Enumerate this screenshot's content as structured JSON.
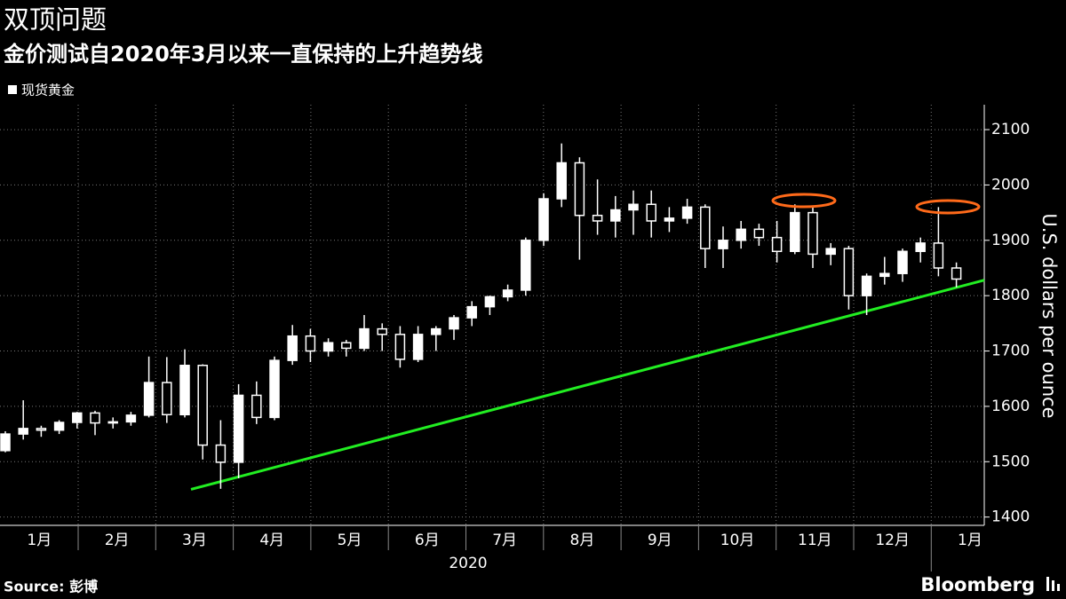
{
  "chart_data": {
    "type": "candlestick",
    "title": "双顶问题",
    "subtitle": "金价测试自2020年3月以来一直保持的上升趋势线",
    "y_axis_label": "U.S. dollars per ounce",
    "source": "Source: 彭博",
    "brand": "Bloomberg",
    "x_labels": [
      "1月",
      "2月",
      "3月",
      "4月",
      "5月",
      "6月",
      "7月",
      "8月",
      "9月",
      "10月",
      "11月",
      "12月",
      "1月"
    ],
    "x_year_label": "2020",
    "categories": [
      null,
      null,
      null,
      null,
      null,
      null,
      null,
      null,
      null,
      null,
      null,
      null,
      null,
      null,
      null,
      null,
      null,
      null,
      null,
      null,
      null,
      null,
      null,
      null,
      null,
      null,
      null,
      null,
      null,
      null,
      null,
      null,
      null,
      null,
      null,
      null,
      null,
      null,
      null,
      null,
      null,
      null,
      null,
      null,
      null,
      null,
      null,
      null,
      null,
      null,
      null,
      null,
      null,
      null
    ],
    "series": [
      {
        "name": "现货黄金",
        "color": "#ffffff",
        "open": [
          1520,
          1550,
          1560,
          1557,
          1571,
          1588,
          1570,
          1572,
          1584,
          1643,
          1585,
          1674,
          1530,
          1499,
          1620,
          1580,
          1683,
          1727,
          1700,
          1715,
          1705,
          1740,
          1730,
          1685,
          1730,
          1740,
          1760,
          1780,
          1798,
          1810,
          1900,
          1975,
          2040,
          1945,
          1935,
          1955,
          1965,
          1935,
          1940,
          1960,
          1885,
          1900,
          1920,
          1905,
          1880,
          1950,
          1875,
          1885,
          1800,
          1835,
          1840,
          1880,
          1895,
          1850
        ],
        "high": [
          1555,
          1611,
          1565,
          1575,
          1590,
          1592,
          1580,
          1590,
          1690,
          1689,
          1703,
          1676,
          1575,
          1640,
          1645,
          1690,
          1747,
          1740,
          1723,
          1720,
          1765,
          1750,
          1745,
          1745,
          1745,
          1765,
          1790,
          1800,
          1820,
          1905,
          1985,
          2075,
          2050,
          2010,
          1980,
          1990,
          1990,
          1960,
          1975,
          1965,
          1925,
          1935,
          1930,
          1935,
          1965,
          1960,
          1895,
          1890,
          1840,
          1870,
          1885,
          1905,
          1960,
          1860
        ],
        "low": [
          1517,
          1540,
          1545,
          1550,
          1560,
          1548,
          1560,
          1565,
          1580,
          1570,
          1580,
          1504,
          1451,
          1470,
          1568,
          1575,
          1675,
          1680,
          1690,
          1690,
          1700,
          1700,
          1670,
          1680,
          1700,
          1720,
          1745,
          1765,
          1790,
          1800,
          1890,
          1960,
          1865,
          1910,
          1905,
          1910,
          1905,
          1915,
          1930,
          1850,
          1850,
          1885,
          1890,
          1860,
          1875,
          1850,
          1855,
          1775,
          1765,
          1820,
          1825,
          1860,
          1835,
          1815
        ],
        "close": [
          1550,
          1560,
          1557,
          1571,
          1588,
          1570,
          1572,
          1584,
          1643,
          1585,
          1674,
          1530,
          1499,
          1620,
          1580,
          1683,
          1727,
          1700,
          1715,
          1705,
          1740,
          1730,
          1685,
          1730,
          1740,
          1760,
          1780,
          1798,
          1810,
          1900,
          1975,
          2040,
          1945,
          1935,
          1955,
          1965,
          1935,
          1940,
          1960,
          1885,
          1900,
          1920,
          1905,
          1880,
          1950,
          1875,
          1885,
          1800,
          1835,
          1840,
          1880,
          1895,
          1850,
          1830
        ]
      }
    ],
    "trendline": {
      "color": "#22ee22",
      "values": [
        1450,
        1828
      ]
    },
    "highlight_color": "#ff6a1a",
    "ylim": [
      1385,
      2145
    ],
    "yticks": [
      1400,
      1500,
      1600,
      1700,
      1800,
      1900,
      2000,
      2100
    ],
    "grid": true
  }
}
